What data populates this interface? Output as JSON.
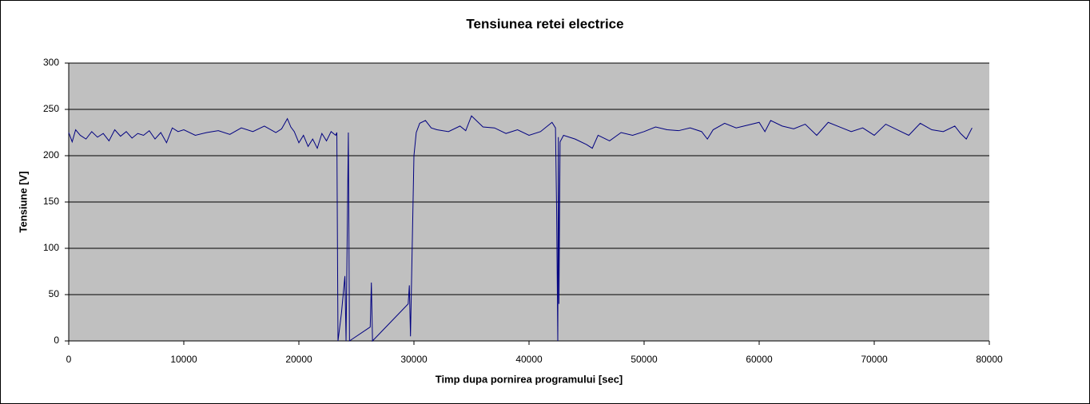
{
  "chart_data": {
    "type": "line",
    "title": "Tensiunea retei electrice",
    "xlabel": "Timp dupa pornirea programului [sec]",
    "ylabel": "Tensiune [V]",
    "x": [
      0,
      300,
      600,
      1000,
      1500,
      2000,
      2500,
      3000,
      3500,
      4000,
      4500,
      5000,
      5500,
      6000,
      6500,
      7000,
      7500,
      8000,
      8500,
      9000,
      9500,
      10000,
      11000,
      12000,
      13000,
      14000,
      15000,
      16000,
      17000,
      18000,
      18500,
      19000,
      19300,
      19600,
      20000,
      20400,
      20800,
      21200,
      21600,
      22000,
      22400,
      22800,
      23200,
      23300,
      23400,
      23700,
      24000,
      24100,
      24300,
      24400,
      26200,
      26300,
      26400,
      29500,
      29600,
      29700,
      30000,
      30200,
      30500,
      31000,
      31500,
      32000,
      33000,
      34000,
      34500,
      35000,
      36000,
      37000,
      38000,
      39000,
      40000,
      41000,
      42000,
      42300,
      42400,
      42500,
      42550,
      42600,
      42700,
      43000,
      44000,
      45000,
      45500,
      46000,
      47000,
      48000,
      49000,
      50000,
      51000,
      52000,
      53000,
      54000,
      55000,
      55500,
      56000,
      57000,
      58000,
      59000,
      60000,
      60500,
      61000,
      62000,
      63000,
      64000,
      65000,
      66000,
      67000,
      68000,
      69000,
      70000,
      71000,
      72000,
      73000,
      74000,
      75000,
      76000,
      77000,
      77500,
      78000,
      78500
    ],
    "series": [
      {
        "name": "Tensiune",
        "color": "#000080",
        "values": [
          225,
          215,
          228,
          222,
          218,
          226,
          220,
          224,
          216,
          228,
          221,
          226,
          219,
          224,
          222,
          227,
          218,
          225,
          214,
          230,
          226,
          228,
          222,
          225,
          227,
          223,
          230,
          226,
          232,
          225,
          229,
          240,
          231,
          226,
          214,
          222,
          210,
          218,
          208,
          224,
          216,
          226,
          222,
          225,
          0,
          30,
          70,
          0,
          225,
          0,
          15,
          63,
          0,
          40,
          60,
          5,
          200,
          225,
          235,
          238,
          230,
          228,
          226,
          232,
          227,
          243,
          231,
          230,
          224,
          228,
          222,
          226,
          236,
          230,
          140,
          0,
          220,
          40,
          215,
          222,
          218,
          212,
          208,
          222,
          216,
          225,
          222,
          226,
          231,
          228,
          227,
          230,
          226,
          218,
          228,
          235,
          230,
          233,
          236,
          226,
          238,
          232,
          229,
          234,
          222,
          236,
          231,
          226,
          230,
          222,
          234,
          228,
          222,
          235,
          228,
          226,
          232,
          224,
          218,
          230
        ]
      }
    ],
    "xlim": [
      0,
      80000
    ],
    "xticks": [
      0,
      10000,
      20000,
      30000,
      40000,
      50000,
      60000,
      70000,
      80000
    ],
    "ylim": [
      0,
      300
    ],
    "yticks": [
      0,
      50,
      100,
      150,
      200,
      250,
      300
    ],
    "grid": true
  }
}
